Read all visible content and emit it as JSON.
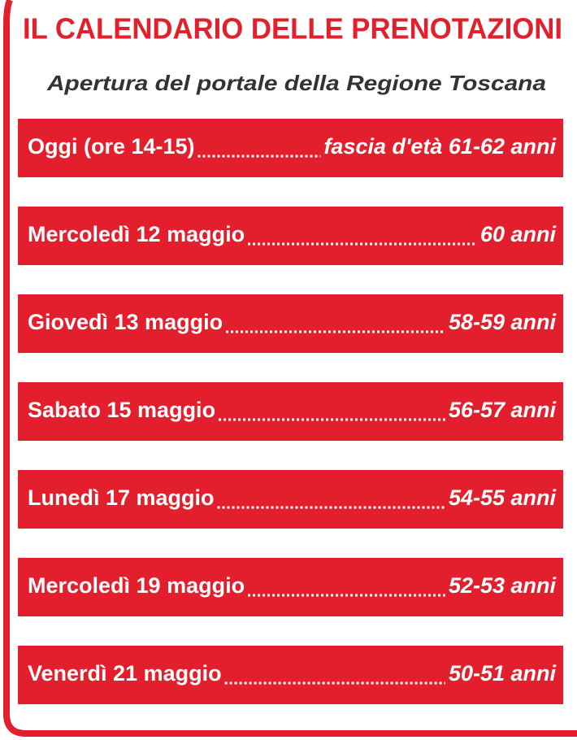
{
  "header": {
    "title": "IL CALENDARIO DELLE PRENOTAZIONI",
    "subtitle": "Apertura del portale della Regione Toscana"
  },
  "rows": [
    {
      "day": "Oggi (ore 14-15)",
      "group": "fascia d'età 61-62 anni"
    },
    {
      "day": "Mercoledì 12 maggio",
      "group": "60 anni"
    },
    {
      "day": "Giovedì 13 maggio",
      "group": "58-59 anni"
    },
    {
      "day": "Sabato 15 maggio",
      "group": "56-57 anni"
    },
    {
      "day": "Lunedì 17 maggio",
      "group": "54-55 anni"
    },
    {
      "day": "Mercoledì 19 maggio",
      "group": "52-53 anni"
    },
    {
      "day": "Venerdì 21 maggio",
      "group": "50-51 anni"
    }
  ]
}
